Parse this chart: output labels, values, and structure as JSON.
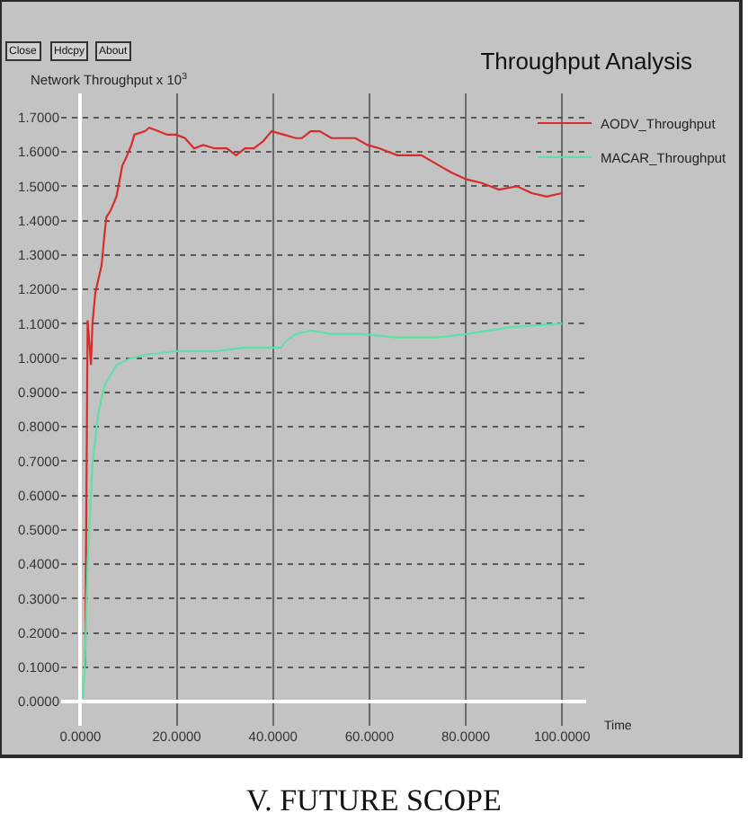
{
  "chart_data": {
    "type": "line",
    "title": "Throughput Analysis",
    "xlabel": "Time",
    "ylabel": "Network Throughput x 10$^{3}$",
    "annotations": [
      "Close",
      "Hdcpy",
      "About",
      "V. FUTURE SCOPE"
    ],
    "xlim": [
      -4,
      105
    ],
    "ylim": [
      -0.07,
      1.77
    ],
    "xticks": [
      {
        "value": 0,
        "label": "0.0000"
      },
      {
        "value": 20,
        "label": "20.0000"
      },
      {
        "value": 40,
        "label": "40.0000"
      },
      {
        "value": 60,
        "label": "60.0000"
      },
      {
        "value": 80,
        "label": "80.0000"
      },
      {
        "value": 100,
        "label": "100.0000"
      }
    ],
    "yticks": [
      {
        "value": 0,
        "label": "0.0000"
      },
      {
        "value": 0.1,
        "label": "0.1000"
      },
      {
        "value": 0.2,
        "label": "0.2000"
      },
      {
        "value": 0.3,
        "label": "0.3000"
      },
      {
        "value": 0.4,
        "label": "0.4000"
      },
      {
        "value": 0.5,
        "label": "0.5000"
      },
      {
        "value": 0.6,
        "label": "0.6000"
      },
      {
        "value": 0.7,
        "label": "0.7000"
      },
      {
        "value": 0.8,
        "label": "0.8000"
      },
      {
        "value": 0.9,
        "label": "0.9000"
      },
      {
        "value": 1.0,
        "label": "1.0000"
      },
      {
        "value": 1.1,
        "label": "1.1000"
      },
      {
        "value": 1.2,
        "label": "1.2000"
      },
      {
        "value": 1.3,
        "label": "1.3000"
      },
      {
        "value": 1.4,
        "label": "1.4000"
      },
      {
        "value": 1.5,
        "label": "1.5000"
      },
      {
        "value": 1.6,
        "label": "1.6000"
      },
      {
        "value": 1.7,
        "label": "1.7000"
      }
    ],
    "grid": true,
    "legend": "top right",
    "marker": "none",
    "line_style": "solid",
    "series": [
      {
        "name": "AODV_Throughput",
        "color": "#d92b2b",
        "x": [
          1.0,
          1.3,
          1.5,
          2.2,
          2.5,
          3.1,
          4.4,
          5.0,
          5.4,
          6.3,
          7.5,
          8.7,
          9.4,
          10.6,
          11.2,
          13.4,
          14.3,
          16.2,
          18.0,
          19.9,
          21.7,
          23.6,
          25.5,
          27.9,
          30.4,
          32.3,
          34.2,
          36.0,
          37.9,
          39.7,
          42.2,
          44.7,
          46.0,
          47.8,
          49.7,
          52.1,
          55.3,
          57.1,
          59.6,
          62.1,
          65.8,
          70.8,
          74.5,
          77.0,
          80.1,
          83.2,
          86.9,
          90.6,
          93.7,
          96.8,
          100
        ],
        "values": [
          0.1,
          0.7,
          1.11,
          0.98,
          1.1,
          1.19,
          1.27,
          1.36,
          1.41,
          1.43,
          1.47,
          1.56,
          1.58,
          1.62,
          1.65,
          1.66,
          1.67,
          1.66,
          1.65,
          1.65,
          1.64,
          1.61,
          1.62,
          1.61,
          1.61,
          1.59,
          1.61,
          1.61,
          1.63,
          1.66,
          1.65,
          1.64,
          1.64,
          1.66,
          1.66,
          1.64,
          1.64,
          1.64,
          1.62,
          1.61,
          1.59,
          1.59,
          1.56,
          1.54,
          1.52,
          1.51,
          1.49,
          1.5,
          1.48,
          1.47,
          1.48
        ]
      },
      {
        "name": "MACAR_Throughput",
        "color": "#5ee0a8",
        "x": [
          0.5,
          0.9,
          1.5,
          2.5,
          3.7,
          5.0,
          7.5,
          10.6,
          13.7,
          19.9,
          24.8,
          28.5,
          33.5,
          38.5,
          41.6,
          42.8,
          44.7,
          47.8,
          52.1,
          58.4,
          65.8,
          73.9,
          80.1,
          89.4,
          100
        ],
        "values": [
          0.01,
          0.1,
          0.4,
          0.69,
          0.84,
          0.92,
          0.98,
          1.0,
          1.01,
          1.02,
          1.02,
          1.02,
          1.03,
          1.03,
          1.03,
          1.05,
          1.07,
          1.08,
          1.07,
          1.07,
          1.06,
          1.06,
          1.07,
          1.09,
          1.1
        ]
      }
    ]
  }
}
